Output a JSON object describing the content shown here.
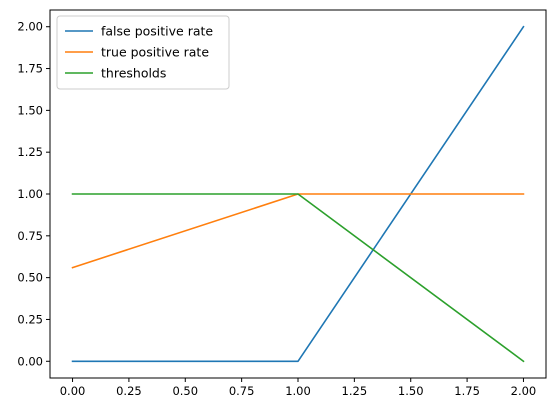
{
  "chart_data": {
    "type": "line",
    "title": "",
    "xlabel": "",
    "ylabel": "",
    "xlim": [
      -0.1,
      2.1
    ],
    "ylim": [
      -0.1,
      2.1
    ],
    "xticks": [
      0.0,
      0.25,
      0.5,
      0.75,
      1.0,
      1.25,
      1.5,
      1.75,
      2.0
    ],
    "xtick_labels": [
      "0.00",
      "0.25",
      "0.50",
      "0.75",
      "1.00",
      "1.25",
      "1.50",
      "1.75",
      "2.00"
    ],
    "yticks": [
      0.0,
      0.25,
      0.5,
      0.75,
      1.0,
      1.25,
      1.5,
      1.75,
      2.0
    ],
    "ytick_labels": [
      "0.00",
      "0.25",
      "0.50",
      "0.75",
      "1.00",
      "1.25",
      "1.50",
      "1.75",
      "2.00"
    ],
    "grid": false,
    "legend_position": "top-left",
    "x": [
      0,
      1,
      2
    ],
    "series": [
      {
        "name": "false positive rate",
        "values": [
          0.0,
          0.0,
          2.0
        ],
        "color": "#1f77b4"
      },
      {
        "name": "true positive rate",
        "values": [
          0.56,
          1.0,
          1.0
        ],
        "color": "#ff7f0e"
      },
      {
        "name": "thresholds",
        "values": [
          1.0,
          1.0,
          0.0
        ],
        "color": "#2ca02c"
      }
    ]
  }
}
